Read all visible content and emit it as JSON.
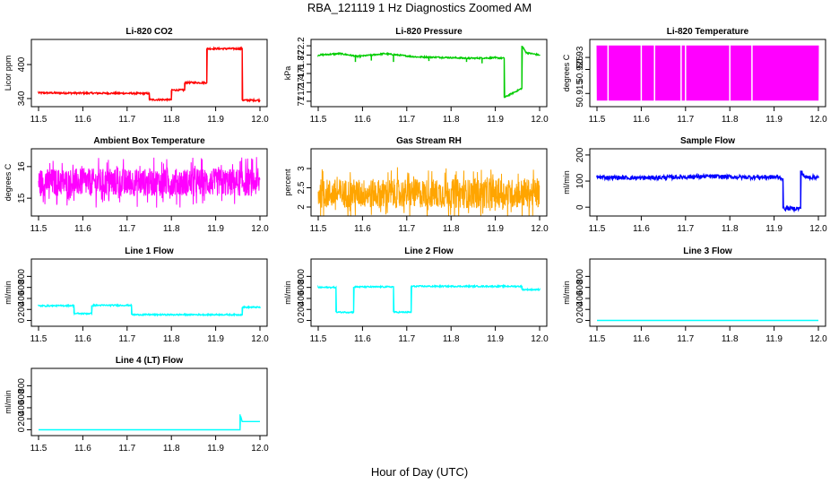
{
  "figure": {
    "main_title": "RBA_121119  1 Hz Diagnostics Zoomed AM",
    "x_caption": "Hour of Day (UTC)"
  },
  "chart_data": [
    {
      "type": "line",
      "title": "Li-820 CO2",
      "ylabel": "Licor ppm",
      "color": "#ff0000",
      "x": [
        11.5,
        11.75,
        11.75,
        11.8,
        11.8,
        11.83,
        11.83,
        11.88,
        11.88,
        11.96,
        11.96,
        12.0
      ],
      "y": [
        350,
        349,
        338,
        338,
        355,
        355,
        368,
        368,
        428,
        428,
        337,
        337
      ],
      "noise": 1.5,
      "xlim": [
        11.5,
        12.0
      ],
      "xticks": [
        11.5,
        11.6,
        11.7,
        11.8,
        11.9,
        12.0
      ],
      "ylim": [
        332,
        438
      ],
      "yticks": [
        340,
        400
      ]
    },
    {
      "type": "line",
      "title": "Li-820 Pressure",
      "ylabel": "kPa",
      "color": "#00cc00",
      "x": [
        11.5,
        11.55,
        11.59,
        11.65,
        11.72,
        11.78,
        11.84,
        11.9,
        11.92,
        11.92,
        11.96,
        11.96,
        11.97,
        12.0
      ],
      "y": [
        72.0,
        72.03,
        71.97,
        72.03,
        71.96,
        71.95,
        71.93,
        71.94,
        71.93,
        71.08,
        71.28,
        72.2,
        72.05,
        72.0
      ],
      "noise": 0.015,
      "spikes": [
        [
          11.584,
          71.85
        ],
        [
          11.62,
          71.88
        ],
        [
          11.67,
          71.85
        ],
        [
          11.75,
          71.87
        ],
        [
          11.835,
          71.85
        ],
        [
          11.87,
          71.82
        ]
      ],
      "xlim": [
        11.5,
        12.0
      ],
      "xticks": [
        11.5,
        11.6,
        11.7,
        11.8,
        11.9,
        12.0
      ],
      "ylim": [
        70.96,
        72.26
      ],
      "yticks": [
        71.0,
        71.2,
        71.4,
        71.6,
        71.8,
        72.0,
        72.2
      ]
    },
    {
      "type": "line",
      "title": "Li-820 Temperature",
      "ylabel": "degrees C",
      "color": "#ff00ff",
      "x": [
        11.5,
        12.0
      ],
      "y": [
        50.9225,
        50.9225
      ],
      "oscillate": [
        50.912,
        50.935
      ],
      "gaps": [
        11.525,
        11.6,
        11.63,
        11.69,
        11.7,
        11.8,
        11.85
      ],
      "xlim": [
        11.5,
        12.0
      ],
      "xticks": [
        11.5,
        11.6,
        11.7,
        11.8,
        11.9,
        12.0
      ],
      "ylim": [
        50.911,
        50.936
      ],
      "yticks": [
        50.915,
        50.925,
        50.93
      ]
    },
    {
      "type": "line",
      "title": "Ambient Box Temperature",
      "ylabel": "degrees C",
      "color": "#ff00ff",
      "x": [
        11.5,
        12.0
      ],
      "y": [
        15.5,
        15.5
      ],
      "oscillate": [
        14.7,
        16.3
      ],
      "xlim": [
        11.5,
        12.0
      ],
      "xticks": [
        11.5,
        11.6,
        11.7,
        11.8,
        11.9,
        12.0
      ],
      "ylim": [
        14.55,
        16.45
      ],
      "yticks": [
        15.0,
        16.0
      ]
    },
    {
      "type": "line",
      "title": "Gas Stream RH",
      "ylabel": "percent",
      "color": "#ffa500",
      "x": [
        11.5,
        12.0
      ],
      "y": [
        2.35,
        2.35
      ],
      "oscillate": [
        1.92,
        3.3
      ],
      "xlim": [
        11.5,
        12.0
      ],
      "xticks": [
        11.5,
        11.6,
        11.7,
        11.8,
        11.9,
        12.0
      ],
      "ylim": [
        1.86,
        3.42
      ],
      "yticks": [
        2.0,
        2.5,
        3.0
      ]
    },
    {
      "type": "line",
      "title": "Sample Flow",
      "ylabel": "ml/min",
      "color": "#0000ff",
      "x": [
        11.5,
        11.6,
        11.75,
        11.82,
        11.91,
        11.92,
        11.92,
        11.96,
        11.96,
        11.97,
        12.0
      ],
      "y": [
        115,
        112,
        118,
        115,
        115,
        110,
        -5,
        -5,
        140,
        115,
        115
      ],
      "noise": 8,
      "xlim": [
        11.5,
        12.0
      ],
      "xticks": [
        11.5,
        11.6,
        11.7,
        11.8,
        11.9,
        12.0
      ],
      "ylim": [
        -20,
        210
      ],
      "yticks": [
        0,
        100,
        200
      ]
    },
    {
      "type": "line",
      "title": "Line 1 Flow",
      "ylabel": "ml/min",
      "color": "#00ffff",
      "x": [
        11.5,
        11.58,
        11.58,
        11.62,
        11.62,
        11.71,
        11.71,
        11.95,
        11.96,
        11.96,
        12.0
      ],
      "y": [
        265,
        270,
        125,
        125,
        275,
        275,
        105,
        105,
        105,
        240,
        240
      ],
      "noise": 12,
      "xlim": [
        11.5,
        12.0
      ],
      "xticks": [
        11.5,
        11.6,
        11.7,
        11.8,
        11.9,
        12.0
      ],
      "ylim": [
        -40,
        1050
      ],
      "yticks": [
        0,
        200,
        400,
        600,
        800
      ]
    },
    {
      "type": "line",
      "title": "Line 2 Flow",
      "ylabel": "ml/min",
      "color": "#00ffff",
      "x": [
        11.5,
        11.54,
        11.54,
        11.58,
        11.58,
        11.67,
        11.67,
        11.71,
        11.71,
        11.96,
        11.96,
        12.0
      ],
      "y": [
        600,
        600,
        150,
        150,
        610,
        610,
        150,
        150,
        620,
        620,
        560,
        560
      ],
      "noise": 12,
      "xlim": [
        11.5,
        12.0
      ],
      "xticks": [
        11.5,
        11.6,
        11.7,
        11.8,
        11.9,
        12.0
      ],
      "ylim": [
        -40,
        1050
      ],
      "yticks": [
        0,
        200,
        400,
        600,
        800
      ]
    },
    {
      "type": "line",
      "title": "Line 3 Flow",
      "ylabel": "ml/min",
      "color": "#00ffff",
      "x": [
        11.5,
        12.0
      ],
      "y": [
        0,
        0
      ],
      "xlim": [
        11.5,
        12.0
      ],
      "xticks": [
        11.5,
        11.6,
        11.7,
        11.8,
        11.9,
        12.0
      ],
      "ylim": [
        -40,
        1050
      ],
      "yticks": [
        0,
        200,
        400,
        600,
        800
      ]
    },
    {
      "type": "line",
      "title": "Line 4 (LT) Flow",
      "ylabel": "ml/min",
      "color": "#00ffff",
      "x": [
        11.5,
        11.955,
        11.955,
        11.96,
        11.96,
        12.0
      ],
      "y": [
        0,
        0,
        280,
        150,
        150,
        150
      ],
      "xlim": [
        11.5,
        12.0
      ],
      "xticks": [
        11.5,
        11.6,
        11.7,
        11.8,
        11.9,
        12.0
      ],
      "ylim": [
        -40,
        1050
      ],
      "yticks": [
        0,
        200,
        400,
        600,
        800
      ]
    }
  ]
}
